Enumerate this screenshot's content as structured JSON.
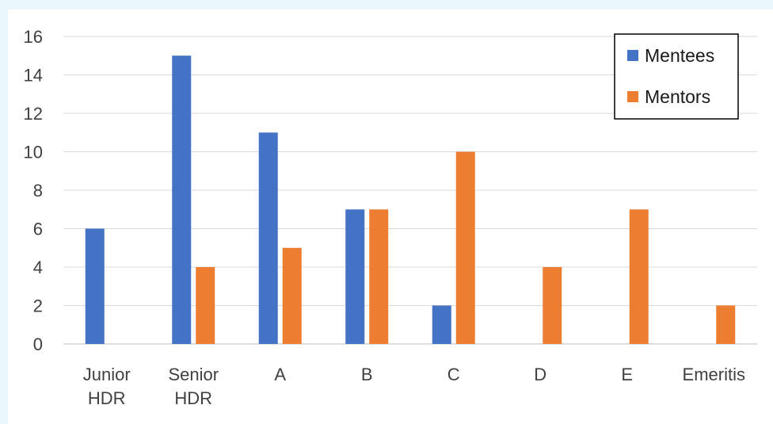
{
  "chart_data": {
    "type": "bar",
    "title": "",
    "xlabel": "",
    "ylabel": "",
    "categories": [
      [
        "Junior",
        "HDR"
      ],
      [
        "Senior",
        "HDR"
      ],
      [
        "A"
      ],
      [
        "B"
      ],
      [
        "C"
      ],
      [
        "D"
      ],
      [
        "E"
      ],
      [
        "Emeritis"
      ]
    ],
    "series": [
      {
        "name": "Mentees",
        "color": "#4472c4",
        "values": [
          6,
          15,
          11,
          7,
          2,
          0,
          0,
          0
        ]
      },
      {
        "name": "Mentors",
        "color": "#ed7d31",
        "values": [
          0,
          4,
          5,
          7,
          10,
          4,
          7,
          2
        ]
      }
    ],
    "ylim": [
      0,
      16
    ],
    "yticks": [
      0,
      2,
      4,
      6,
      8,
      10,
      12,
      14,
      16
    ],
    "grid": true,
    "legend_position": "top-right"
  }
}
